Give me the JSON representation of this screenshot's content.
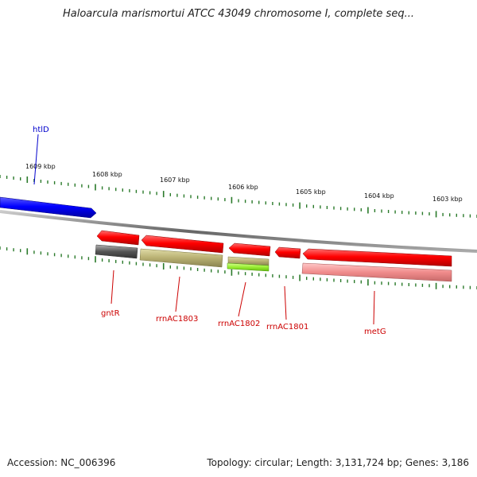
{
  "title": "Haloarcula marismortui ATCC 43049 chromosome I, complete seq...",
  "footer": {
    "accession": "Accession: NC_006396",
    "topology": "Topology: circular; Length: 3,131,724 bp; Genes: 3,186"
  },
  "colors": {
    "backbone": "#888888",
    "tick": "#2a7a2a",
    "forward_gene": "#0000ff",
    "reverse_gene": "#ff0000",
    "label_forward": "#0000cc",
    "label_reverse": "#cc0000"
  },
  "kbp_labels": [
    "1609 kbp",
    "1608 kbp",
    "1607 kbp",
    "1606 kbp",
    "1605 kbp",
    "1604 kbp",
    "1603 kbp"
  ],
  "genes": [
    {
      "name": "htlD",
      "strand": "+"
    },
    {
      "name": "gntR",
      "strand": "-"
    },
    {
      "name": "rrnAC1803",
      "strand": "-"
    },
    {
      "name": "rrnAC1802",
      "strand": "-"
    },
    {
      "name": "rrnAC1801",
      "strand": "-"
    },
    {
      "name": "metG",
      "strand": "-"
    }
  ]
}
